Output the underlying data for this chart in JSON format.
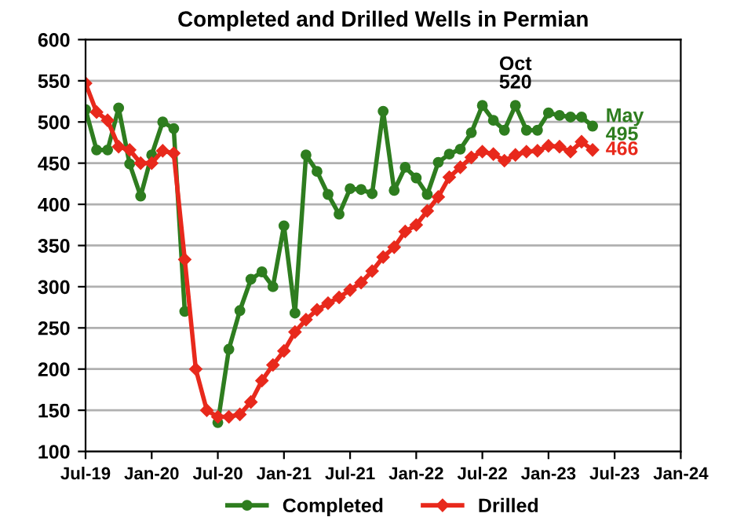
{
  "chart_data": {
    "type": "line",
    "title": "Completed and Drilled Wells in Permian",
    "x": [
      "2019-07",
      "2019-08",
      "2019-09",
      "2019-10",
      "2019-11",
      "2019-12",
      "2020-01",
      "2020-02",
      "2020-03",
      "2020-04",
      "2020-05",
      "2020-06",
      "2020-07",
      "2020-08",
      "2020-09",
      "2020-10",
      "2020-11",
      "2020-12",
      "2021-01",
      "2021-02",
      "2021-03",
      "2021-04",
      "2021-05",
      "2021-06",
      "2021-07",
      "2021-08",
      "2021-09",
      "2021-10",
      "2021-11",
      "2021-12",
      "2022-01",
      "2022-02",
      "2022-03",
      "2022-04",
      "2022-05",
      "2022-06",
      "2022-07",
      "2022-08",
      "2022-09",
      "2022-10",
      "2022-11",
      "2022-12",
      "2023-01",
      "2023-02",
      "2023-03",
      "2023-04",
      "2023-05"
    ],
    "series": [
      {
        "name": "Completed",
        "color": "#2e7d1f",
        "marker": "circle",
        "values": [
          515,
          466,
          466,
          517,
          449,
          410,
          460,
          500,
          492,
          270,
          null,
          null,
          135,
          224,
          271,
          309,
          318,
          300,
          374,
          268,
          460,
          440,
          412,
          388,
          419,
          418,
          413,
          513,
          417,
          445,
          432,
          412,
          451,
          461,
          467,
          487,
          520,
          502,
          490,
          520,
          490,
          490,
          511,
          508,
          506,
          506,
          495
        ]
      },
      {
        "name": "Drilled",
        "color": "#e8291c",
        "marker": "diamond",
        "values": [
          547,
          512,
          502,
          470,
          466,
          450,
          450,
          465,
          462,
          333,
          200,
          150,
          142,
          142,
          145,
          160,
          186,
          205,
          222,
          245,
          260,
          272,
          280,
          287,
          296,
          305,
          319,
          336,
          348,
          367,
          375,
          392,
          409,
          433,
          445,
          457,
          464,
          461,
          453,
          460,
          464,
          465,
          471,
          470,
          464,
          476,
          466
        ]
      }
    ],
    "xlim": [
      "2019-07",
      "2024-01"
    ],
    "xticks": [
      {
        "value": "2019-07",
        "label": "Jul-19"
      },
      {
        "value": "2020-01",
        "label": "Jan-20"
      },
      {
        "value": "2020-07",
        "label": "Jul-20"
      },
      {
        "value": "2021-01",
        "label": "Jan-21"
      },
      {
        "value": "2021-07",
        "label": "Jul-21"
      },
      {
        "value": "2022-01",
        "label": "Jan-22"
      },
      {
        "value": "2022-07",
        "label": "Jul-22"
      },
      {
        "value": "2023-01",
        "label": "Jan-23"
      },
      {
        "value": "2023-07",
        "label": "Jul-23"
      },
      {
        "value": "2024-01",
        "label": "Jan-24"
      }
    ],
    "ylim": [
      100,
      600
    ],
    "yticks": [
      100,
      150,
      200,
      250,
      300,
      350,
      400,
      450,
      500,
      550,
      600
    ],
    "grid": "y",
    "legend": "bottom",
    "annotations": [
      {
        "text": "Oct\n520",
        "x": "2022-10",
        "y": 520
      },
      {
        "text": "May\n495",
        "x": "2023-05",
        "y": 495
      },
      {
        "text": "466",
        "x": "2023-05",
        "y": 466
      }
    ]
  }
}
